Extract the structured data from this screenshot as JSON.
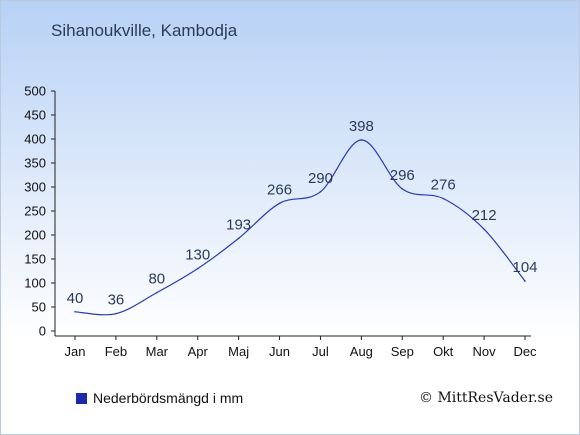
{
  "header": {
    "title": "Sihanoukville, Kambodja"
  },
  "legend": {
    "label": "Nederbördsmängd i mm",
    "color": "#1a2aa8"
  },
  "footer": {
    "copyright": "© MittResVader.se"
  },
  "colors": {
    "line": "#2a3bb0",
    "axis": "#222222",
    "text": "#2a3b57"
  },
  "chart_data": {
    "type": "line",
    "title": "Sihanoukville, Kambodja",
    "xlabel": "",
    "ylabel": "",
    "categories": [
      "Jan",
      "Feb",
      "Mar",
      "Apr",
      "Maj",
      "Jun",
      "Jul",
      "Aug",
      "Sep",
      "Okt",
      "Nov",
      "Dec"
    ],
    "series": [
      {
        "name": "Nederbördsmängd i mm",
        "values": [
          40,
          36,
          80,
          130,
          193,
          266,
          290,
          398,
          296,
          276,
          212,
          104
        ]
      }
    ],
    "data_labels": [
      "40",
      "36",
      "80",
      "130",
      "193",
      "266",
      "290",
      "398",
      "296",
      "276",
      "212",
      "104"
    ],
    "ylim": [
      0,
      500
    ],
    "yticks": [
      0,
      50,
      100,
      150,
      200,
      250,
      300,
      350,
      400,
      450,
      500
    ],
    "grid": false,
    "legend_position": "bottom-left"
  }
}
